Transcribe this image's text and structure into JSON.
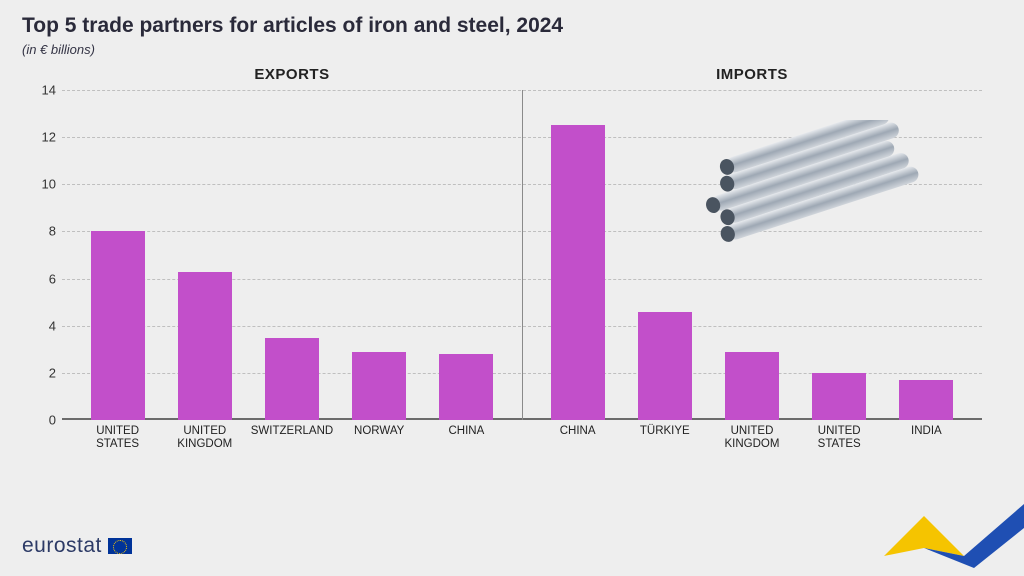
{
  "title": "Top 5 trade partners for articles of iron and steel, 2024",
  "subtitle": "(in € billions)",
  "footer_brand": "eurostat",
  "chart": {
    "type": "bar",
    "background_color": "#eeeeee",
    "bar_color": "#c24fca",
    "grid_color": "#bfbfbf",
    "baseline_color": "#6b6b6b",
    "divider_color": "#8a8a8a",
    "title_fontsize": 21,
    "subtitle_fontsize": 13,
    "axis_fontsize": 13,
    "xlabel_fontsize": 11.5,
    "section_title_fontsize": 15,
    "bar_width_ratio": 0.62,
    "ylim": [
      0,
      14
    ],
    "ytick_step": 2,
    "yticks": [
      0,
      2,
      4,
      6,
      8,
      10,
      12,
      14
    ],
    "panels": [
      {
        "heading": "EXPORTS",
        "categories": [
          "UNITED\nSTATES",
          "UNITED\nKINGDOM",
          "SWITZERLAND",
          "NORWAY",
          "CHINA"
        ],
        "values": [
          8.0,
          6.3,
          3.5,
          2.9,
          2.8
        ]
      },
      {
        "heading": "IMPORTS",
        "categories": [
          "CHINA",
          "TÜRKIYE",
          "UNITED\nKINGDOM",
          "UNITED\nSTATES",
          "INDIA"
        ],
        "values": [
          12.5,
          4.6,
          2.9,
          2.0,
          1.7
        ]
      }
    ]
  },
  "decoration": {
    "pipes_icon": "steel-pipes",
    "corner_colors": {
      "yellow": "#f5c400",
      "blue": "#1f4fb3"
    }
  }
}
